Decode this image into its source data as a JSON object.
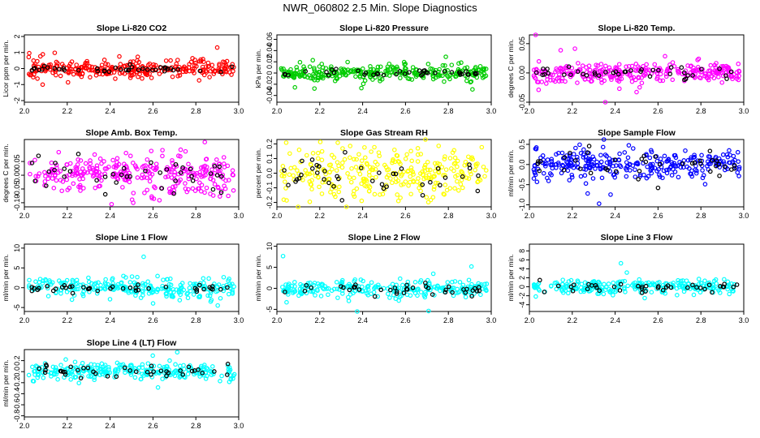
{
  "figure_title": "NWR_060802  2.5 Min. Slope Diagnostics",
  "chart_data": [
    {
      "type": "scatter",
      "title": "Slope Li-820 CO2",
      "ylabel": "Licor ppm per min.",
      "color": "#ff0000",
      "xlim": [
        2.0,
        3.0
      ],
      "ylim": [
        -2.1,
        2.1
      ],
      "xticks": [
        2.0,
        2.2,
        2.4,
        2.6,
        2.8,
        3.0
      ],
      "yticks": [
        -2,
        -1,
        0,
        1,
        2
      ],
      "x_tick_labels": [
        "2.0",
        "2.2",
        "2.4",
        "2.6",
        "2.8",
        "3.0"
      ],
      "y_tick_labels": [
        "-2",
        "-1",
        "0",
        "1",
        "2"
      ],
      "spread": 0.25,
      "outlier_spread": 0.9,
      "black_spread": 0.12,
      "n": 300,
      "seed": 11,
      "events": []
    },
    {
      "type": "scatter",
      "title": "Slope Li-820 Pressure",
      "ylabel": "kPa per min.",
      "color": "#00cc00",
      "xlim": [
        2.0,
        3.0
      ],
      "ylim": [
        -0.052,
        0.068
      ],
      "xticks": [
        2.0,
        2.2,
        2.4,
        2.6,
        2.8,
        3.0
      ],
      "yticks": [
        -0.04,
        -0.02,
        0,
        0.02,
        0.04,
        0.06
      ],
      "x_tick_labels": [
        "2.0",
        "2.2",
        "2.4",
        "2.6",
        "2.8",
        "3.0"
      ],
      "y_tick_labels": [
        "-0.04",
        "-0.02",
        "0",
        "0.02",
        "0.04",
        "0.06"
      ],
      "spread": 0.006,
      "outlier_spread": 0.018,
      "black_spread": 0.003,
      "n": 300,
      "seed": 22,
      "events": []
    },
    {
      "type": "scatter",
      "title": "Slope Li-820 Temp.",
      "ylabel": "degrees C per min.",
      "color": "#ff00ff",
      "xlim": [
        2.0,
        3.0
      ],
      "ylim": [
        -0.05,
        0.065
      ],
      "xticks": [
        2.0,
        2.2,
        2.4,
        2.6,
        2.8,
        3.0
      ],
      "yticks": [
        -0.05,
        0,
        0.05
      ],
      "x_tick_labels": [
        "2.0",
        "2.2",
        "2.4",
        "2.6",
        "2.8",
        "3.0"
      ],
      "y_tick_labels": [
        "-0.05",
        "0.00",
        "0.05"
      ],
      "spread": 0.008,
      "outlier_spread": 0.03,
      "black_spread": 0.005,
      "n": 300,
      "seed": 33,
      "events": []
    },
    {
      "type": "scatter",
      "title": "Slope Amb. Box Temp.",
      "ylabel": "degrees C per min.",
      "color": "#ff00ff",
      "xlim": [
        2.0,
        3.0
      ],
      "ylim": [
        -0.115,
        0.13
      ],
      "xticks": [
        2.0,
        2.2,
        2.4,
        2.6,
        2.8,
        3.0
      ],
      "yticks": [
        -0.1,
        -0.05,
        0,
        0.05
      ],
      "x_tick_labels": [
        "2.0",
        "2.2",
        "2.4",
        "2.6",
        "2.8",
        "3.0"
      ],
      "y_tick_labels": [
        "-0.10",
        "-0.05",
        "0.00",
        "0.05"
      ],
      "spread": 0.035,
      "outlier_spread": 0.07,
      "black_spread": 0.03,
      "n": 300,
      "seed": 44,
      "events": []
    },
    {
      "type": "scatter",
      "title": "Slope Gas Stream RH",
      "ylabel": "percent per min.",
      "color": "#ffff00",
      "xlim": [
        2.0,
        3.0
      ],
      "ylim": [
        -0.23,
        0.23
      ],
      "xticks": [
        2.0,
        2.2,
        2.4,
        2.6,
        2.8,
        3.0
      ],
      "yticks": [
        -0.2,
        -0.1,
        0,
        0.1,
        0.2
      ],
      "x_tick_labels": [
        "2.0",
        "2.2",
        "2.4",
        "2.6",
        "2.8",
        "3.0"
      ],
      "y_tick_labels": [
        "-0.2",
        "-0.1",
        "0.0",
        "0.1",
        "0.2"
      ],
      "spread": 0.09,
      "outlier_spread": 0.15,
      "black_spread": 0.07,
      "n": 300,
      "seed": 55,
      "events": []
    },
    {
      "type": "scatter",
      "title": "Slope Sample Flow",
      "ylabel": "ml/min per min.",
      "color": "#0000ff",
      "xlim": [
        2.0,
        3.0
      ],
      "ylim": [
        -1.05,
        0.62
      ],
      "xticks": [
        2.0,
        2.2,
        2.4,
        2.6,
        2.8,
        3.0
      ],
      "yticks": [
        -1,
        -0.5,
        0,
        0.5
      ],
      "x_tick_labels": [
        "2.0",
        "2.2",
        "2.4",
        "2.6",
        "2.8",
        "3.0"
      ],
      "y_tick_labels": [
        "-1.0",
        "-0.5",
        "0.0",
        "0.5"
      ],
      "spread": 0.18,
      "outlier_spread": 0.45,
      "black_spread": 0.2,
      "n": 300,
      "seed": 66,
      "events": []
    },
    {
      "type": "scatter",
      "title": "Slope Line 1 Flow",
      "ylabel": "ml/min per min.",
      "color": "#00ffff",
      "xlim": [
        2.0,
        3.0
      ],
      "ylim": [
        -6,
        11
      ],
      "xticks": [
        2.0,
        2.2,
        2.4,
        2.6,
        2.8,
        3.0
      ],
      "yticks": [
        -5,
        0,
        5,
        10
      ],
      "x_tick_labels": [
        "2.0",
        "2.2",
        "2.4",
        "2.6",
        "2.8",
        "3.0"
      ],
      "y_tick_labels": [
        "-5",
        "0",
        "5",
        "10"
      ],
      "spread": 1.3,
      "outlier_spread": 4,
      "black_spread": 0.4,
      "n": 260,
      "seed": 77,
      "events": []
    },
    {
      "type": "scatter",
      "title": "Slope Line 2 Flow",
      "ylabel": "ml/min per min.",
      "color": "#00ffff",
      "xlim": [
        2.0,
        3.0
      ],
      "ylim": [
        -5.5,
        10.5
      ],
      "xticks": [
        2.0,
        2.2,
        2.4,
        2.6,
        2.8,
        3.0
      ],
      "yticks": [
        -5,
        0,
        5,
        10
      ],
      "x_tick_labels": [
        "2.0",
        "2.2",
        "2.4",
        "2.6",
        "2.8",
        "3.0"
      ],
      "y_tick_labels": [
        "-5",
        "0",
        "5",
        "10"
      ],
      "spread": 1.0,
      "outlier_spread": 3.5,
      "black_spread": 0.8,
      "n": 260,
      "seed": 88,
      "events": []
    },
    {
      "type": "scatter",
      "title": "Slope Line 3 Flow",
      "ylabel": "ml/min per min.",
      "color": "#00ffff",
      "xlim": [
        2.0,
        3.0
      ],
      "ylim": [
        -5.5,
        9.5
      ],
      "xticks": [
        2.0,
        2.2,
        2.4,
        2.6,
        2.8,
        3.0
      ],
      "yticks": [
        -4,
        -2,
        0,
        2,
        4,
        6,
        8
      ],
      "x_tick_labels": [
        "2.0",
        "2.2",
        "2.4",
        "2.6",
        "2.8",
        "3.0"
      ],
      "y_tick_labels": [
        "-4",
        "-2",
        "0",
        "2",
        "4",
        "6",
        "8"
      ],
      "spread": 0.7,
      "outlier_spread": 2.5,
      "black_spread": 0.6,
      "n": 260,
      "seed": 99,
      "events": []
    },
    {
      "type": "scatter",
      "title": "Slope Line 4 (LT) Flow",
      "ylabel": "ml/min per min.",
      "color": "#00ffff",
      "xlim": [
        2.0,
        3.0
      ],
      "ylim": [
        -0.82,
        0.4
      ],
      "xticks": [
        2.0,
        2.2,
        2.4,
        2.6,
        2.8,
        3.0
      ],
      "yticks": [
        -0.8,
        -0.6,
        -0.4,
        -0.2,
        0,
        0.2
      ],
      "x_tick_labels": [
        "2.0",
        "2.2",
        "2.4",
        "2.6",
        "2.8",
        "3.0"
      ],
      "y_tick_labels": [
        "-0.8",
        "-0.6",
        "-0.4",
        "-0.2",
        "0.0",
        "0.2"
      ],
      "spread": 0.07,
      "outlier_spread": 0.2,
      "black_spread": 0.06,
      "n": 260,
      "seed": 111,
      "events": []
    }
  ]
}
